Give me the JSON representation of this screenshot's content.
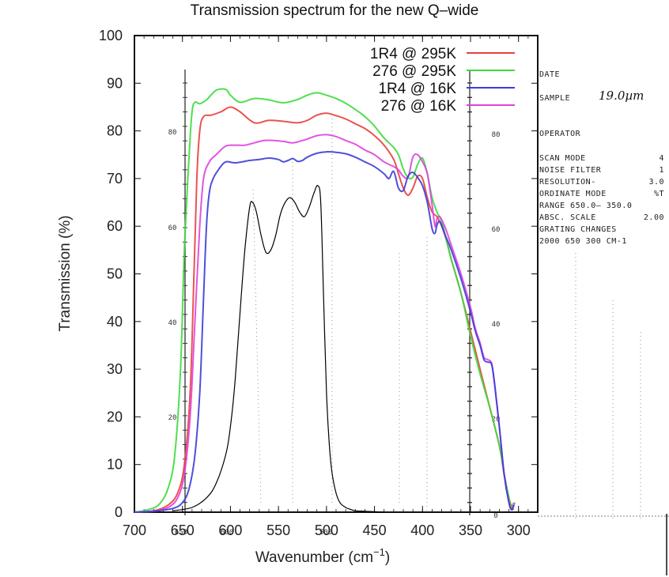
{
  "chart_data": {
    "type": "line",
    "title": "Transmission spectrum for the new Q–wide",
    "xlabel": "Wavenumber (cm",
    "xlabel_superscript": "−1",
    "xlabel_suffix": ")",
    "ylabel": "Transmission (%)",
    "xlim": [
      700,
      280
    ],
    "ylim": [
      0,
      100
    ],
    "x_reversed": true,
    "xticks": [
      700,
      650,
      600,
      550,
      500,
      450,
      400,
      350,
      300
    ],
    "xtick_labels": [
      "700",
      "650",
      "600",
      "550",
      "500",
      "450",
      "400",
      "350",
      "300"
    ],
    "yticks": [
      0,
      10,
      20,
      30,
      40,
      50,
      60,
      70,
      80,
      90,
      100
    ],
    "ytick_labels": [
      "0",
      "10",
      "20",
      "30",
      "40",
      "50",
      "60",
      "70",
      "80",
      "90",
      "100"
    ],
    "grid": false,
    "legend_position": "top-right",
    "series": [
      {
        "name": "1R4 @ 295K",
        "color": "#e8403c",
        "x": [
          700,
          680,
          665,
          655,
          648,
          642,
          638,
          635,
          632,
          628,
          620,
          610,
          600,
          590,
          575,
          560,
          545,
          530,
          520,
          510,
          500,
          490,
          480,
          470,
          460,
          450,
          440,
          430,
          425,
          420,
          415,
          410,
          405,
          400,
          395,
          390,
          385,
          380,
          375,
          370,
          360,
          350,
          340,
          330,
          320,
          315,
          310,
          307,
          305
        ],
        "y": [
          0,
          0.3,
          1.5,
          4,
          10,
          25,
          50,
          70,
          80,
          83,
          83.3,
          84,
          85,
          84,
          81.7,
          82.2,
          82,
          81.7,
          82.2,
          83.3,
          83.7,
          83.2,
          82.5,
          81.5,
          80.5,
          79,
          77,
          74,
          71,
          68,
          66.5,
          68,
          70.5,
          70,
          66,
          63,
          62,
          60,
          57,
          53,
          46,
          38,
          30,
          22,
          14,
          8,
          3,
          1,
          0.5
        ]
      },
      {
        "name": "276 @ 295K",
        "color": "#3cdc3c",
        "x": [
          700,
          690,
          675,
          665,
          658,
          652,
          648,
          643,
          640,
          637,
          632,
          625,
          615,
          605,
          600,
          590,
          575,
          560,
          545,
          530,
          520,
          510,
          500,
          490,
          480,
          470,
          460,
          450,
          440,
          430,
          425,
          420,
          415,
          410,
          405,
          400,
          395,
          390,
          385,
          380,
          375,
          370,
          360,
          350,
          340,
          330,
          320,
          315,
          310,
          308,
          305
        ],
        "y": [
          0,
          0.3,
          1.5,
          5,
          12,
          30,
          55,
          75,
          84,
          86,
          85.7,
          86.5,
          88.5,
          88.7,
          87.5,
          86,
          86.8,
          86.5,
          85.9,
          86.6,
          87.5,
          88,
          87.5,
          86.8,
          85.8,
          84.5,
          83,
          81,
          78.5,
          76.5,
          75,
          72,
          70.2,
          70.3,
          73,
          74.3,
          71,
          66,
          63,
          61,
          57,
          53,
          46,
          37,
          29,
          22,
          14,
          8,
          3,
          1,
          2
        ]
      },
      {
        "name": "1R4 @ 16K",
        "color": "#3c3cd8",
        "x": [
          700,
          680,
          660,
          650,
          643,
          637,
          632,
          628,
          625,
          622,
          618,
          612,
          605,
          595,
          580,
          570,
          560,
          550,
          545,
          540,
          535,
          530,
          525,
          520,
          510,
          500,
          490,
          480,
          470,
          460,
          450,
          440,
          435,
          430,
          425,
          420,
          415,
          410,
          405,
          400,
          395,
          390,
          387,
          385,
          382,
          378,
          375,
          370,
          360,
          350,
          345,
          340,
          336,
          332,
          328,
          325,
          320,
          315,
          310,
          307,
          305
        ],
        "y": [
          0,
          0.2,
          0.8,
          2,
          5,
          12,
          25,
          45,
          60,
          67,
          70,
          72,
          73.5,
          73.3,
          73.8,
          74,
          74.3,
          74,
          73.5,
          73.8,
          74.2,
          73.6,
          73.8,
          74.5,
          75.3,
          75.6,
          75.5,
          75.2,
          74.5,
          73.5,
          72.5,
          71,
          70,
          71.5,
          68,
          67.5,
          70.5,
          71.3,
          70.2,
          68.5,
          65,
          59.5,
          58.5,
          60.2,
          61,
          59,
          57.5,
          55,
          49,
          42,
          38,
          35,
          32,
          31.5,
          31,
          27,
          18,
          8,
          2,
          0.5,
          1.5
        ]
      },
      {
        "name": "276 @ 16K",
        "color": "#e040e0",
        "x": [
          700,
          680,
          665,
          655,
          648,
          642,
          637,
          632,
          628,
          622,
          615,
          605,
          595,
          585,
          575,
          565,
          555,
          545,
          535,
          525,
          520,
          510,
          500,
          490,
          480,
          470,
          460,
          450,
          440,
          430,
          425,
          420,
          415,
          410,
          405,
          400,
          395,
          390,
          387,
          385,
          382,
          378,
          375,
          370,
          360,
          350,
          345,
          340,
          336,
          332,
          328,
          325,
          320,
          315,
          310,
          307,
          304
        ],
        "y": [
          0,
          0.2,
          1,
          3,
          8,
          20,
          40,
          60,
          70,
          73.5,
          75,
          76.8,
          77,
          77,
          77.5,
          78,
          78,
          77.8,
          77.5,
          78,
          78.3,
          79,
          79.2,
          78.8,
          78,
          77.2,
          76,
          75,
          73.5,
          72.5,
          71.8,
          70.5,
          70.3,
          74.5,
          75,
          73.5,
          71,
          64.5,
          60,
          61.5,
          62,
          60.5,
          59,
          56,
          50,
          43,
          38.5,
          35.5,
          32.5,
          32,
          31.2,
          27,
          18,
          8,
          2,
          0.5,
          2
        ]
      },
      {
        "name": "reference filter (black trace)",
        "color": "#000000",
        "in_legend": false,
        "x": [
          660,
          640,
          625,
          615,
          605,
          600,
          595,
          590,
          585,
          580,
          577,
          573,
          568,
          563,
          558,
          553,
          548,
          543,
          538,
          533,
          528,
          523,
          518,
          513,
          509,
          506,
          503,
          500,
          497,
          494,
          490,
          486,
          480,
          475,
          470,
          460,
          450,
          440
        ],
        "y": [
          0.3,
          1,
          3,
          6,
          12,
          18,
          28,
          42,
          55,
          64,
          65,
          63,
          58,
          54.5,
          55,
          58,
          62.5,
          65,
          66,
          65,
          63,
          62,
          64,
          67,
          68.5,
          65,
          45,
          25,
          14,
          8,
          4,
          2,
          1,
          0.6,
          0.3,
          0.2,
          0.1,
          0
        ]
      }
    ]
  },
  "paper_overlay": {
    "fields": [
      {
        "label": "DATE",
        "value": ""
      },
      {
        "label": "SAMPLE",
        "value": "19.0µm"
      },
      {
        "label": "OPERATOR",
        "value": ""
      },
      {
        "label": "SCAN MODE",
        "value": "4"
      },
      {
        "label": "NOISE FILTER",
        "value": "1"
      },
      {
        "label": "RESOLUTION-",
        "value": "3.0"
      },
      {
        "label": "ORDINATE MODE",
        "value": "%T"
      },
      {
        "label": "RANGE  650.0– 350.0",
        "value": ""
      },
      {
        "label": "ABSC. SCALE",
        "value": "2.00"
      },
      {
        "label": "GRATING CHANGES",
        "value": ""
      },
      {
        "label": "  2000 650 300 CM-1",
        "value": ""
      }
    ],
    "left_axis_labels": [
      "80",
      "60",
      "40",
      "20"
    ],
    "right_axis_labels": [
      "80",
      "60",
      "40",
      "20",
      "0"
    ],
    "bottom_labels": [
      "650",
      "600",
      "500"
    ]
  }
}
